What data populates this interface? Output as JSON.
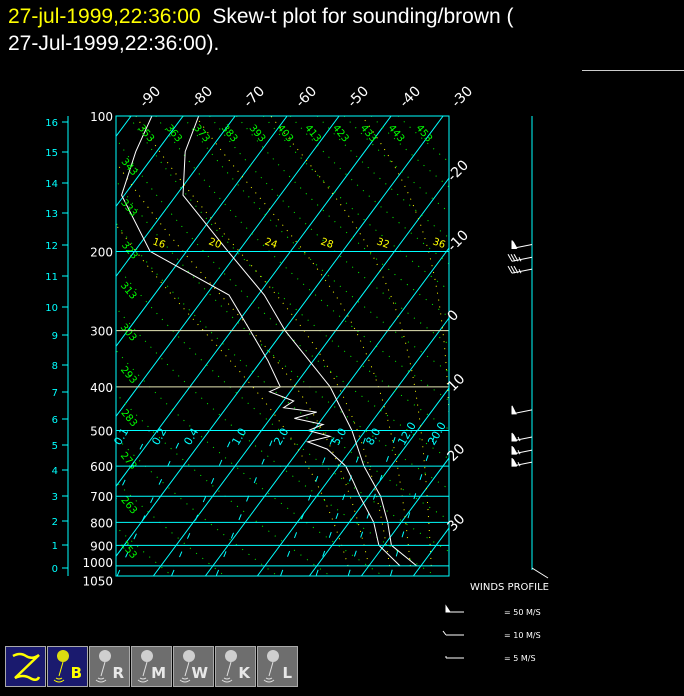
{
  "header": {
    "timestamp": "27-jul-1999,22:36:00",
    "title_rest": "  Skew-t plot for sounding/brown (",
    "title_line2": "27-Jul-1999,22:36:00)."
  },
  "colors": {
    "isotherm": "#00ffff",
    "dry_adiabat": "#00ff00",
    "moist_adiabat": "#ffff00",
    "mixing_ratio": "#00ffff",
    "profile": "#ffffff",
    "timestamp": "#ffff00",
    "button_active": "#1a1a6e",
    "button_inactive": "#6e6e6e"
  },
  "chart_data": {
    "type": "skew-t",
    "pressure_axis": {
      "ticks": [
        100,
        200,
        300,
        400,
        500,
        600,
        700,
        800,
        900,
        1000,
        1050
      ],
      "range": [
        100,
        1050
      ],
      "scale": "log"
    },
    "height_axis": {
      "ticks": [
        0,
        1,
        2,
        3,
        4,
        5,
        6,
        7,
        8,
        9,
        10,
        11,
        12,
        13,
        14,
        15,
        16
      ]
    },
    "isotherm_labels": [
      -90,
      -80,
      -70,
      -60,
      -50,
      -40,
      -30,
      -20,
      -10,
      0,
      10,
      20,
      30
    ],
    "dry_adiabat_labels": [
      243,
      253,
      263,
      273,
      283,
      293,
      303,
      313,
      323,
      333,
      343,
      353,
      363,
      373,
      383,
      393,
      403,
      413,
      423,
      433,
      443,
      453
    ],
    "moist_adiabat_labels": [
      16,
      20,
      24,
      28,
      32,
      36
    ],
    "mixing_ratio_labels": [
      "0.1",
      "0.2",
      "0.4",
      "1.0",
      "2.0",
      "5.0",
      "8.0",
      "12.0",
      "20.0"
    ],
    "temperature": [
      [
        1000,
        29.2
      ],
      [
        900,
        21.4
      ],
      [
        800,
        17.4
      ],
      [
        700,
        12.3
      ],
      [
        600,
        4.8
      ],
      [
        500,
        -2.6
      ],
      [
        400,
        -13
      ],
      [
        300,
        -29.7
      ],
      [
        250,
        -38.8
      ],
      [
        200,
        -52
      ],
      [
        150,
        -68.7
      ],
      [
        120,
        -74.5
      ],
      [
        100,
        -77
      ]
    ],
    "dewpoint": [
      [
        1000,
        26
      ],
      [
        900,
        19
      ],
      [
        800,
        14.7
      ],
      [
        700,
        8.3
      ],
      [
        650,
        5
      ],
      [
        600,
        1.3
      ],
      [
        550,
        -4.7
      ],
      [
        530,
        -9.5
      ],
      [
        515,
        -6
      ],
      [
        500,
        -11
      ],
      [
        485,
        -9
      ],
      [
        470,
        -15.4
      ],
      [
        455,
        -12
      ],
      [
        445,
        -19
      ],
      [
        430,
        -18
      ],
      [
        410,
        -24
      ],
      [
        400,
        -22.6
      ],
      [
        350,
        -28.7
      ],
      [
        300,
        -36.4
      ],
      [
        250,
        -45.6
      ],
      [
        200,
        -67
      ],
      [
        150,
        -80.5
      ],
      [
        120,
        -84
      ],
      [
        100,
        -86
      ]
    ],
    "winds": [
      {
        "p": 193,
        "speed": 60
      },
      {
        "p": 206,
        "speed": 35
      },
      {
        "p": 219,
        "speed": 35
      },
      {
        "p": 450,
        "speed": 50
      },
      {
        "p": 517,
        "speed": 65
      },
      {
        "p": 553,
        "speed": 65
      },
      {
        "p": 588,
        "speed": 65
      }
    ]
  },
  "winds_legend": {
    "title": "WINDS PROFILE",
    "items": [
      "= 50 M/S",
      "= 10 M/S",
      "= 5 M/S"
    ]
  },
  "toolbar": {
    "buttons": [
      {
        "id": "z",
        "letter": "",
        "state": "active"
      },
      {
        "id": "b",
        "letter": "B",
        "state": "active"
      },
      {
        "id": "r",
        "letter": "R",
        "state": "inactive"
      },
      {
        "id": "m",
        "letter": "M",
        "state": "inactive"
      },
      {
        "id": "w",
        "letter": "W",
        "state": "inactive"
      },
      {
        "id": "k",
        "letter": "K",
        "state": "inactive"
      },
      {
        "id": "l",
        "letter": "L",
        "state": "inactive"
      }
    ]
  }
}
